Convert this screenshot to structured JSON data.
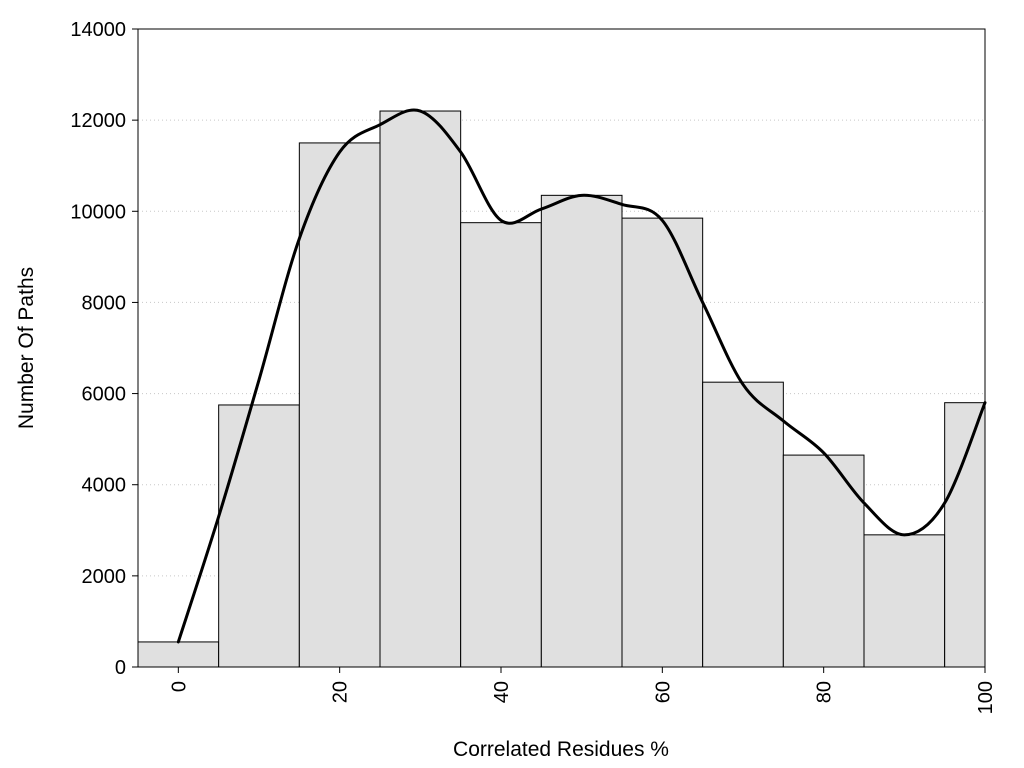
{
  "chart_data": {
    "type": "bar",
    "x": [
      0,
      10,
      20,
      30,
      40,
      50,
      60,
      70,
      80,
      90,
      100
    ],
    "values": [
      550,
      5750,
      11500,
      12200,
      9750,
      10350,
      9850,
      6250,
      4650,
      2900,
      5800
    ],
    "bin_width": 10,
    "curve": {
      "x": [
        0,
        5,
        10,
        15,
        20,
        25,
        30,
        35,
        40,
        45,
        50,
        55,
        60,
        65,
        70,
        75,
        80,
        85,
        90,
        95,
        100
      ],
      "y": [
        550,
        3300,
        6300,
        9400,
        11300,
        11900,
        12200,
        11300,
        9800,
        10050,
        10350,
        10150,
        9800,
        8000,
        6200,
        5400,
        4700,
        3600,
        2900,
        3600,
        5800
      ]
    },
    "xlabel": "Correlated Residues %",
    "ylabel": "Number Of Paths",
    "xticks": [
      0,
      20,
      40,
      60,
      80,
      100
    ],
    "yticks": [
      0,
      2000,
      4000,
      6000,
      8000,
      10000,
      12000,
      14000
    ],
    "xlim": [
      -5,
      100
    ],
    "ylim": [
      0,
      14000
    ],
    "grid": "horizontal dotted",
    "colors": {
      "bar_fill": "#e0e0e0",
      "bar_stroke": "#000000",
      "curve": "#000000"
    }
  }
}
